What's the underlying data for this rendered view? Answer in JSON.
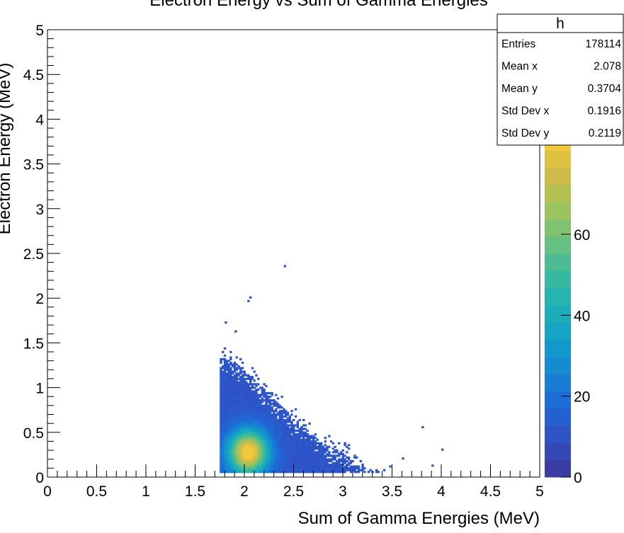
{
  "chart_data": {
    "type": "heatmap",
    "title": "Electron Energy vs Sum of Gamma Energies",
    "xlabel": "Sum of Gamma Energies (MeV)",
    "ylabel": "Electron Energy (MeV)",
    "xlim": [
      0,
      5
    ],
    "ylim": [
      0,
      5
    ],
    "x_ticks": [
      "0",
      "0.5",
      "1",
      "1.5",
      "2",
      "2.5",
      "3",
      "3.5",
      "4",
      "4.5",
      "5"
    ],
    "y_ticks": [
      "0",
      "0.5",
      "1",
      "1.5",
      "2",
      "2.5",
      "3",
      "3.5",
      "4",
      "4.5",
      "5"
    ],
    "color_scale": {
      "range": [
        0,
        85
      ],
      "ticks": [
        "0",
        "20",
        "40",
        "60"
      ],
      "palette": [
        "#3a3da3",
        "#2f53c6",
        "#1d6ad8",
        "#1688d2",
        "#12a0c8",
        "#1fb1b4",
        "#3eba9c",
        "#6dc17c",
        "#a1c35b",
        "#d1bb48",
        "#f1ca3c"
      ]
    },
    "distribution": {
      "x_min": 1.75,
      "y_min": 0.05,
      "peak": [
        2.03,
        0.27
      ],
      "envelope": [
        [
          1.75,
          1.35
        ],
        [
          2.0,
          1.2
        ],
        [
          2.25,
          0.9
        ],
        [
          2.5,
          0.65
        ],
        [
          2.75,
          0.4
        ],
        [
          3.0,
          0.25
        ],
        [
          3.2,
          0.1
        ]
      ],
      "outliers": [
        [
          2.4,
          2.35
        ],
        [
          2.05,
          2.0
        ],
        [
          2.03,
          1.96
        ],
        [
          1.8,
          1.72
        ],
        [
          1.9,
          1.62
        ],
        [
          3.8,
          0.55
        ],
        [
          4.0,
          0.3
        ],
        [
          3.6,
          0.2
        ],
        [
          3.9,
          0.12
        ]
      ]
    },
    "stats": {
      "name": "h",
      "rows": [
        {
          "label": "Entries",
          "value": "178114"
        },
        {
          "label": "Mean x",
          "value": "2.078"
        },
        {
          "label": "Mean y",
          "value": "0.3704"
        },
        {
          "label": "Std Dev x",
          "value": "0.1916"
        },
        {
          "label": "Std Dev y",
          "value": "0.2119"
        }
      ]
    }
  }
}
